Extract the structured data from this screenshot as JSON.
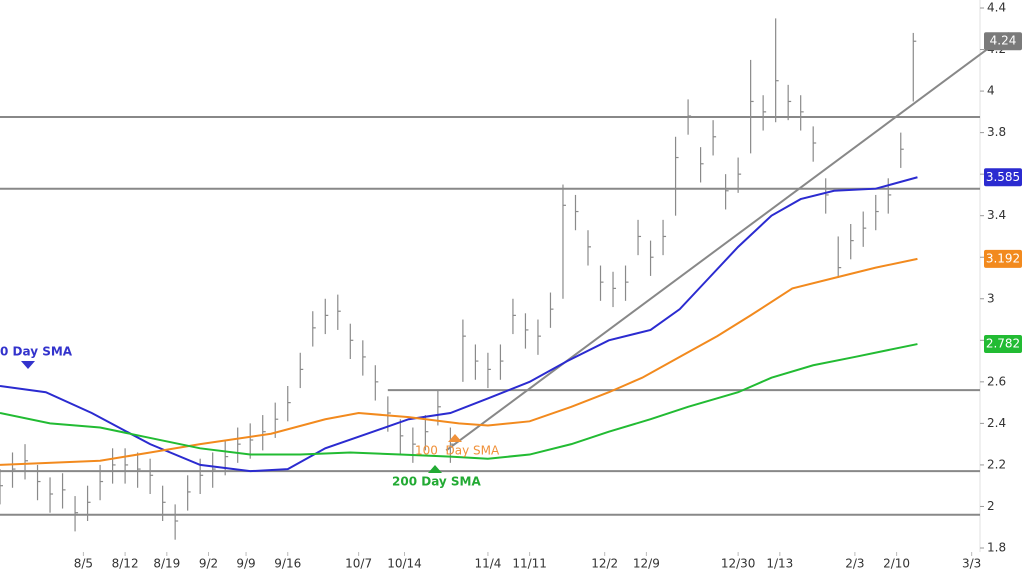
{
  "chart_data": {
    "type": "ohlc",
    "x": [
      0,
      3,
      6,
      9,
      12,
      15,
      18,
      21,
      24,
      27,
      30,
      33,
      36,
      39,
      42,
      45,
      48,
      51,
      54,
      57,
      60,
      63,
      66,
      69,
      72,
      75,
      78,
      81,
      84,
      87,
      90,
      93,
      96,
      99,
      102,
      105,
      108,
      111,
      114,
      117,
      120,
      123,
      126,
      129,
      132,
      135,
      138,
      141,
      144,
      147,
      150,
      153,
      156,
      159,
      162,
      165,
      168,
      171,
      174,
      177,
      180,
      183,
      186,
      189,
      192,
      195,
      198,
      201,
      204,
      207,
      210,
      213,
      216,
      219
    ],
    "high": [
      2.18,
      2.26,
      2.3,
      2.2,
      2.14,
      2.16,
      2.05,
      2.1,
      2.2,
      2.28,
      2.28,
      2.26,
      2.23,
      2.1,
      2.01,
      2.15,
      2.23,
      2.26,
      2.32,
      2.38,
      2.4,
      2.44,
      2.5,
      2.58,
      2.74,
      2.94,
      3.0,
      3.02,
      2.88,
      2.8,
      2.68,
      2.53,
      2.42,
      2.38,
      2.44,
      2.56,
      2.38,
      2.9,
      2.78,
      2.74,
      2.78,
      3.0,
      2.93,
      2.9,
      3.03,
      3.55,
      3.5,
      3.33,
      3.16,
      3.13,
      3.16,
      3.38,
      3.28,
      3.38,
      3.78,
      3.96,
      3.73,
      3.86,
      3.6,
      3.68,
      4.15,
      3.98,
      4.35,
      4.03,
      3.98,
      3.83,
      3.58,
      3.3,
      3.36,
      3.42,
      3.5,
      3.58,
      3.8,
      4.28
    ],
    "low": [
      2.01,
      2.09,
      2.13,
      2.03,
      1.97,
      1.99,
      1.88,
      1.93,
      2.03,
      2.11,
      2.11,
      2.09,
      2.06,
      1.93,
      1.84,
      1.98,
      2.06,
      2.09,
      2.15,
      2.21,
      2.23,
      2.27,
      2.33,
      2.41,
      2.57,
      2.77,
      2.83,
      2.85,
      2.71,
      2.63,
      2.51,
      2.36,
      2.25,
      2.21,
      2.27,
      2.39,
      2.21,
      2.6,
      2.61,
      2.57,
      2.61,
      2.83,
      2.76,
      2.73,
      2.86,
      3.0,
      3.33,
      3.16,
      2.99,
      2.96,
      2.99,
      3.21,
      3.11,
      3.21,
      3.4,
      3.79,
      3.56,
      3.69,
      3.43,
      3.51,
      3.7,
      3.81,
      3.85,
      3.86,
      3.81,
      3.66,
      3.41,
      3.1,
      3.19,
      3.25,
      3.33,
      3.41,
      3.63,
      3.95
    ],
    "close": [
      2.1,
      2.18,
      2.22,
      2.12,
      2.06,
      2.08,
      1.97,
      2.02,
      2.12,
      2.2,
      2.2,
      2.18,
      2.15,
      2.02,
      1.93,
      2.07,
      2.15,
      2.18,
      2.24,
      2.3,
      2.32,
      2.36,
      2.42,
      2.5,
      2.66,
      2.86,
      2.92,
      2.94,
      2.8,
      2.72,
      2.6,
      2.45,
      2.34,
      2.3,
      2.36,
      2.48,
      2.3,
      2.82,
      2.7,
      2.66,
      2.7,
      2.92,
      2.85,
      2.82,
      2.95,
      3.45,
      3.42,
      3.25,
      3.08,
      3.05,
      3.08,
      3.3,
      3.2,
      3.3,
      3.68,
      3.88,
      3.65,
      3.78,
      3.52,
      3.6,
      3.95,
      3.9,
      4.05,
      3.95,
      3.9,
      3.75,
      3.5,
      3.15,
      3.28,
      3.34,
      3.42,
      3.5,
      3.72,
      4.24
    ],
    "bar_color": "#8a8a8a",
    "last_color": "#7a7a7a",
    "series": [
      {
        "color": "#2b2bd0",
        "x": [
          0,
          11,
          22,
          36,
          48,
          60,
          69,
          78,
          88,
          98,
          108,
          117,
          127,
          136,
          146,
          156,
          163,
          170,
          177,
          185,
          192,
          200,
          210,
          220
        ],
        "values": [
          2.58,
          2.55,
          2.45,
          2.3,
          2.2,
          2.17,
          2.18,
          2.28,
          2.35,
          2.42,
          2.45,
          2.52,
          2.6,
          2.7,
          2.8,
          2.85,
          2.95,
          3.1,
          3.25,
          3.4,
          3.48,
          3.52,
          3.53,
          3.585
        ]
      },
      {
        "color": "#f28a1e",
        "x": [
          0,
          24,
          36,
          48,
          65,
          78,
          86,
          98,
          110,
          117,
          127,
          137,
          146,
          154,
          163,
          172,
          180,
          190,
          200,
          210,
          220
        ],
        "values": [
          2.2,
          2.22,
          2.26,
          2.3,
          2.35,
          2.42,
          2.45,
          2.43,
          2.4,
          2.39,
          2.41,
          2.48,
          2.55,
          2.62,
          2.72,
          2.82,
          2.92,
          3.05,
          3.1,
          3.15,
          3.192
        ]
      },
      {
        "color": "#22bb33",
        "x": [
          0,
          12,
          24,
          36,
          48,
          60,
          72,
          84,
          96,
          108,
          117,
          127,
          137,
          146,
          156,
          165,
          177,
          185,
          195,
          205,
          220
        ],
        "values": [
          2.45,
          2.4,
          2.38,
          2.33,
          2.28,
          2.25,
          2.25,
          2.26,
          2.25,
          2.24,
          2.23,
          2.25,
          2.3,
          2.36,
          2.42,
          2.48,
          2.55,
          2.62,
          2.68,
          2.72,
          2.782
        ]
      }
    ],
    "levels": [
      3.875,
      3.53,
      2.17,
      1.96
    ],
    "lines": [
      {
        "x": [
          93,
          235
        ],
        "y": [
          2.56,
          2.56
        ]
      },
      {
        "x": [
          107,
          242
        ],
        "y": [
          2.27,
          4.28
        ]
      }
    ],
    "line_color": "#888888",
    "annotations": [
      {
        "text": "0 Day SMA",
        "color": "#3333cc"
      },
      {
        "text": "100  Day SMA",
        "color": "#f0913a"
      },
      {
        "text": "200 Day SMA",
        "color": "#22aa33"
      }
    ],
    "xlim": [
      0,
      235
    ],
    "xticks": [
      {
        "value": 20,
        "label": "8/5"
      },
      {
        "value": 30,
        "label": "8/12"
      },
      {
        "value": 40,
        "label": "8/19"
      },
      {
        "value": 50,
        "label": "9/2"
      },
      {
        "value": 59,
        "label": "9/9"
      },
      {
        "value": 69,
        "label": "9/16"
      },
      {
        "value": 86,
        "label": "10/7"
      },
      {
        "value": 97,
        "label": "10/14"
      },
      {
        "value": 117,
        "label": "11/4"
      },
      {
        "value": 127,
        "label": "11/11"
      },
      {
        "value": 145,
        "label": "12/2"
      },
      {
        "value": 155,
        "label": "12/9"
      },
      {
        "value": 177,
        "label": "12/30"
      },
      {
        "value": 187,
        "label": "1/13"
      },
      {
        "value": 205,
        "label": "2/3"
      },
      {
        "value": 215,
        "label": "2/10"
      },
      {
        "value": 233,
        "label": "3/3"
      }
    ],
    "ylim": [
      1.8,
      4.4
    ],
    "yticks": [
      1.8,
      2,
      2.2,
      2.4,
      2.6,
      2.8,
      3,
      3.2,
      3.4,
      3.6,
      3.8,
      4,
      4.2,
      4.4
    ]
  }
}
